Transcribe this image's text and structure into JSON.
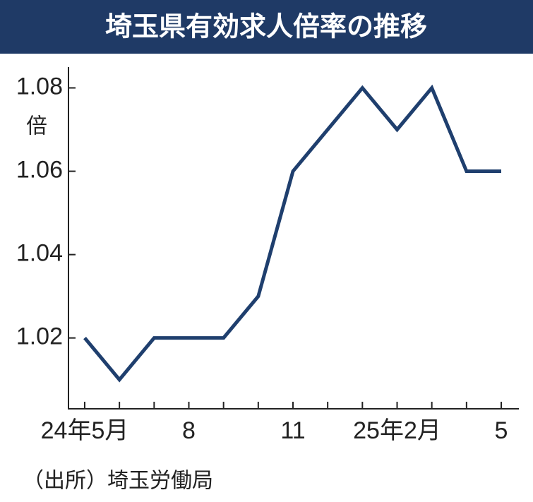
{
  "chart_data": {
    "type": "line",
    "title": "埼玉県有効求人倍率の推移",
    "unit_label": "倍",
    "source": "（出所）埼玉労働局",
    "categories": [
      "24年5月",
      null,
      null,
      "8",
      null,
      null,
      "11",
      null,
      null,
      "25年2月",
      null,
      null,
      "5"
    ],
    "series": [
      {
        "name": "有効求人倍率",
        "color": "#1f3f6e",
        "values": [
          1.02,
          1.01,
          1.02,
          1.02,
          1.02,
          1.03,
          1.06,
          1.07,
          1.08,
          1.07,
          1.08,
          1.06,
          1.06
        ]
      }
    ],
    "ylim": [
      1.003,
      1.085
    ],
    "yticks": [
      1.02,
      1.04,
      1.06,
      1.08
    ],
    "grid": false
  }
}
